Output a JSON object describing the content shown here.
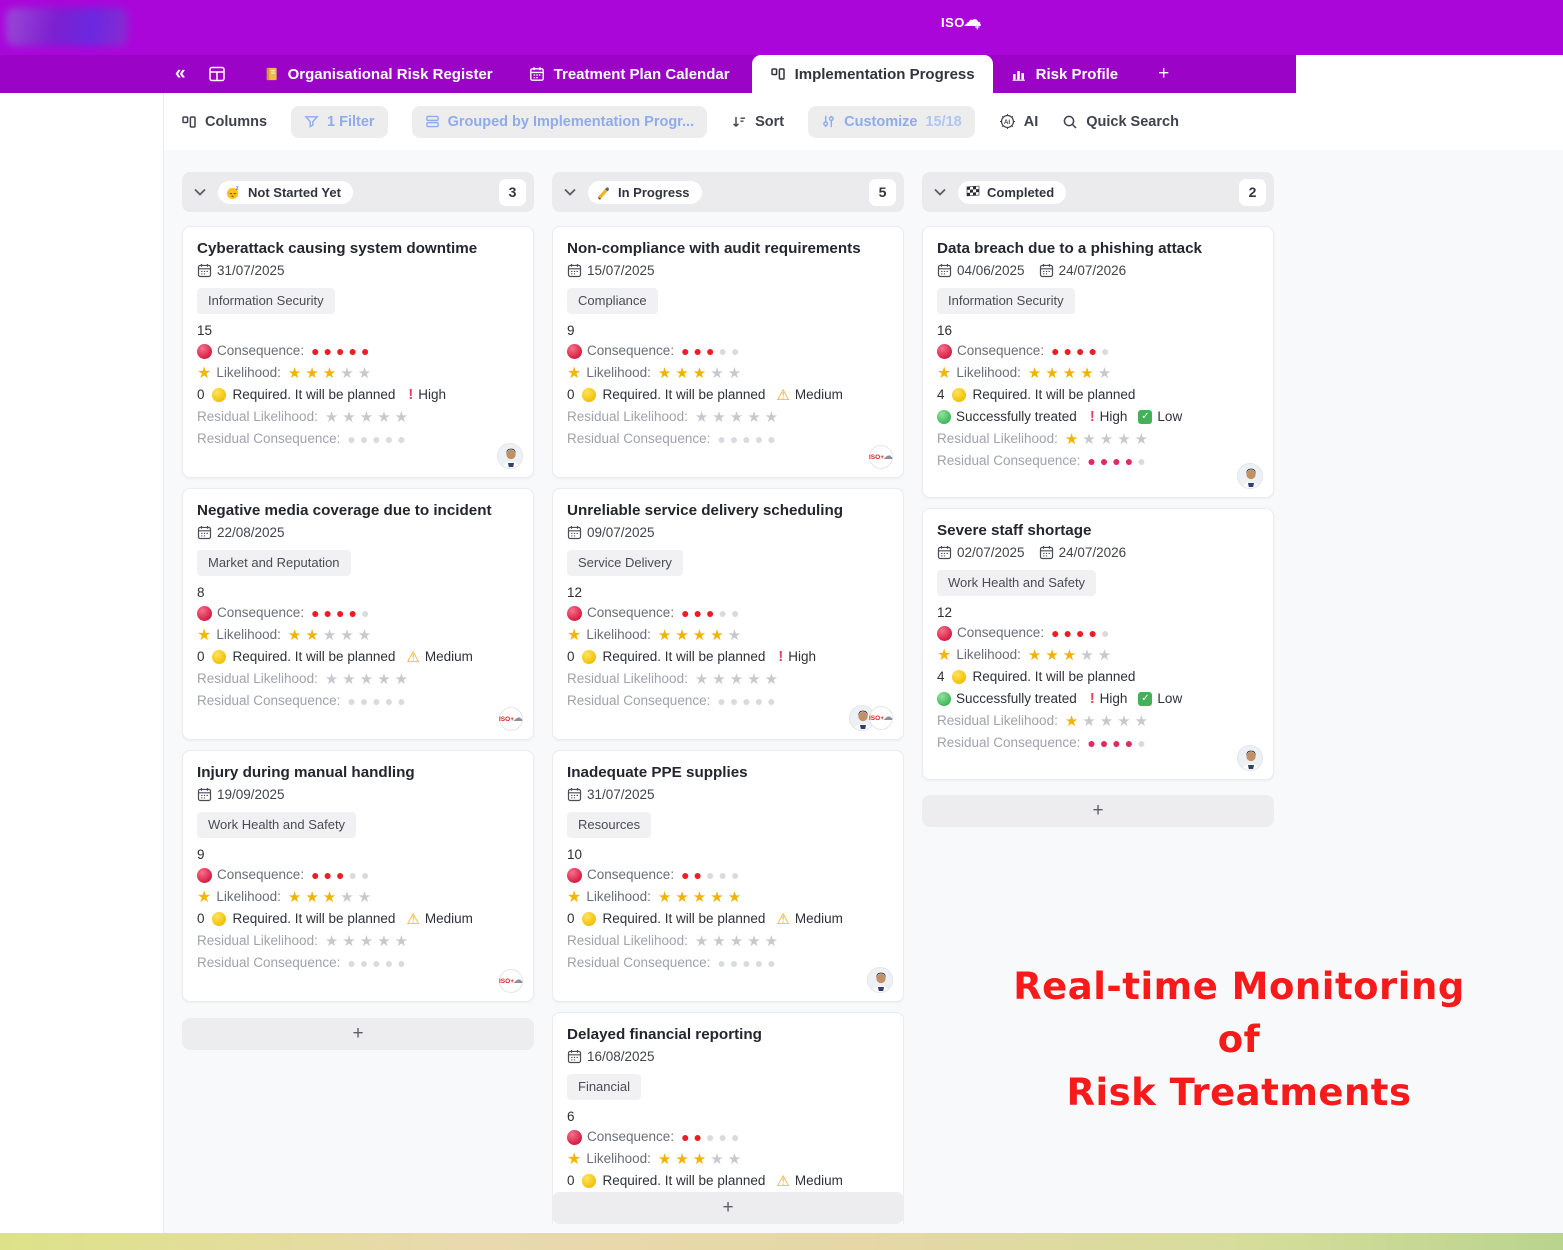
{
  "topbar": {
    "logo_text": "ISO",
    "logo_plus": "+"
  },
  "tabs": {
    "collapse": "«",
    "items": [
      {
        "label": "Organisational Risk Register"
      },
      {
        "label": "Treatment Plan Calendar"
      },
      {
        "label": "Implementation Progress"
      },
      {
        "label": "Risk Profile"
      }
    ],
    "add_label": "+"
  },
  "toolbar": {
    "columns_label": "Columns",
    "filter_label": "1 Filter",
    "grouped_label": "Grouped by Implementation Progr...",
    "sort_label": "Sort",
    "customize_label": "Customize",
    "customize_count": "15/18",
    "ai_label": "AI",
    "search_label": "Quick Search"
  },
  "labels": {
    "consequence": "Consequence:",
    "likelihood": "Likelihood:",
    "residual_likelihood": "Residual Likelihood:",
    "residual_consequence": "Residual Consequence:"
  },
  "board": {
    "columns": [
      {
        "label": "Not Started Yet",
        "count": "3",
        "emoji": "sleeping-face",
        "add_label": "+",
        "cards": [
          {
            "title": "Cyberattack causing system downtime",
            "dates": [
              "31/07/2025"
            ],
            "tag": "Information Security",
            "score": "15",
            "consequence": 5,
            "likelihood": 3,
            "required_count": "0",
            "required_text": "Required. It will be planned",
            "priority": "High",
            "priority_level": "high",
            "residual_likelihood": 0,
            "residual_consequence": 0,
            "footer": [
              "avatar"
            ]
          },
          {
            "title": "Negative media coverage due to incident",
            "dates": [
              "22/08/2025"
            ],
            "tag": "Market and Reputation",
            "score": "8",
            "consequence": 4,
            "likelihood": 2,
            "required_count": "0",
            "required_text": "Required. It will be planned",
            "priority": "Medium",
            "priority_level": "medium",
            "residual_likelihood": 0,
            "residual_consequence": 0,
            "footer": [
              "iso"
            ]
          },
          {
            "title": "Injury during manual handling",
            "dates": [
              "19/09/2025"
            ],
            "tag": "Work Health and Safety",
            "score": "9",
            "consequence": 3,
            "likelihood": 3,
            "required_count": "0",
            "required_text": "Required. It will be planned",
            "priority": "Medium",
            "priority_level": "medium",
            "residual_likelihood": 0,
            "residual_consequence": 0,
            "footer": [
              "iso"
            ]
          }
        ]
      },
      {
        "label": "In Progress",
        "count": "5",
        "emoji": "writing-hand",
        "add_label": "+",
        "cards": [
          {
            "title": "Non-compliance with audit requirements",
            "dates": [
              "15/07/2025"
            ],
            "tag": "Compliance",
            "score": "9",
            "consequence": 3,
            "likelihood": 3,
            "required_count": "0",
            "required_text": "Required. It will be planned",
            "priority": "Medium",
            "priority_level": "medium",
            "residual_likelihood": 0,
            "residual_consequence": 0,
            "footer": [
              "iso"
            ]
          },
          {
            "title": "Unreliable service delivery scheduling",
            "dates": [
              "09/07/2025"
            ],
            "tag": "Service Delivery",
            "score": "12",
            "consequence": 3,
            "likelihood": 4,
            "required_count": "0",
            "required_text": "Required. It will be planned",
            "priority": "High",
            "priority_level": "high",
            "residual_likelihood": 0,
            "residual_consequence": 0,
            "footer": [
              "avatar",
              "iso"
            ]
          },
          {
            "title": "Inadequate PPE supplies",
            "dates": [
              "31/07/2025"
            ],
            "tag": "Resources",
            "score": "10",
            "consequence": 2,
            "likelihood": 5,
            "required_count": "0",
            "required_text": "Required. It will be planned",
            "priority": "Medium",
            "priority_level": "medium",
            "residual_likelihood": 0,
            "residual_consequence": 0,
            "footer": [
              "avatar"
            ]
          },
          {
            "title": "Delayed financial reporting",
            "dates": [
              "16/08/2025"
            ],
            "tag": "Financial",
            "score": "6",
            "consequence": 2,
            "likelihood": 3,
            "required_count": "0",
            "required_text": "Required. It will be planned",
            "priority": "Medium",
            "priority_level": "medium",
            "residual_likelihood": 0,
            "residual_consequence": 0,
            "footer": []
          }
        ]
      },
      {
        "label": "Completed",
        "count": "2",
        "emoji": "chequered-flag",
        "add_label": "+",
        "cards": [
          {
            "title": "Data breach due to a phishing attack",
            "dates": [
              "04/06/2025",
              "24/07/2026"
            ],
            "tag": "Information Security",
            "score": "16",
            "consequence": 4,
            "likelihood": 4,
            "required_count": "4",
            "required_text": "Required. It will be planned",
            "treated_text": "Successfully treated",
            "treated_high": "High",
            "treated_low": "Low",
            "residual_likelihood": 1,
            "residual_consequence": 4,
            "footer": [
              "avatar"
            ]
          },
          {
            "title": "Severe staff shortage",
            "dates": [
              "02/07/2025",
              "24/07/2026"
            ],
            "tag": "Work Health and Safety",
            "score": "12",
            "consequence": 4,
            "likelihood": 3,
            "required_count": "4",
            "required_text": "Required. It will be planned",
            "treated_text": "Successfully treated",
            "treated_high": "High",
            "treated_low": "Low",
            "residual_likelihood": 1,
            "residual_consequence": 4,
            "footer": [
              "avatar"
            ]
          }
        ]
      }
    ]
  },
  "annotation": {
    "line1": "Real-time Monitoring of",
    "line2": "Risk Treatments"
  },
  "colors": {
    "topbar_purple": "#aa06da",
    "tabstrip_purple": "#9b04c7",
    "chip_blue": "#8fabea",
    "red_dot": "#ee1c25",
    "crimson_dot": "#e02a60",
    "gold_star": "#f0b400",
    "annotation_red": "#f61a1a"
  }
}
